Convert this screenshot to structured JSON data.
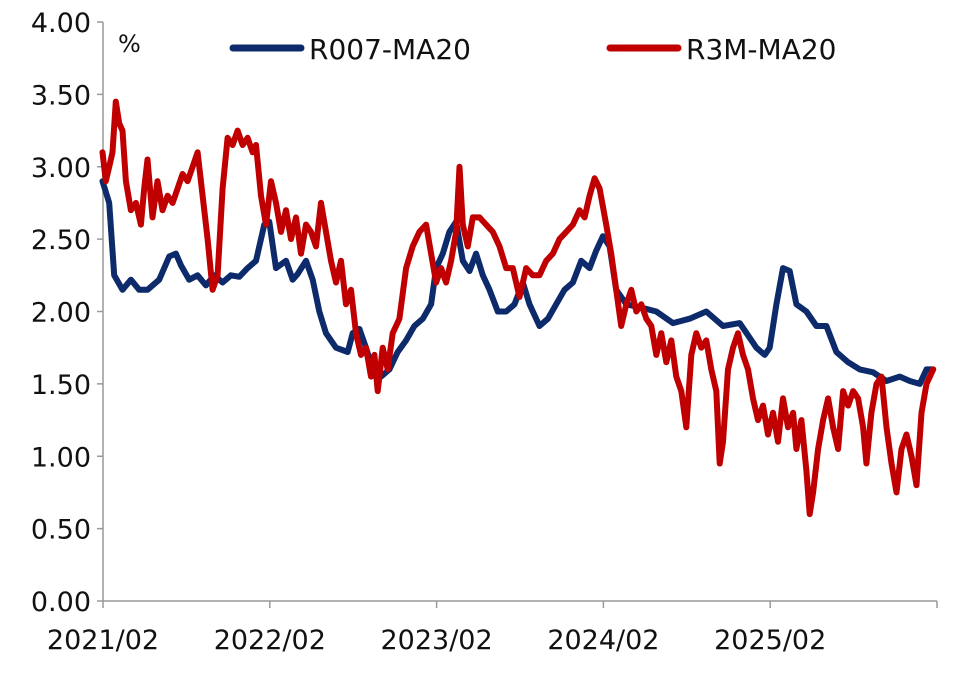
{
  "chart_data": {
    "type": "line",
    "title": "",
    "unit_label": "%",
    "xlabel": "",
    "ylabel": "%",
    "ylim": [
      0,
      4
    ],
    "y_ticks": [
      "0.00",
      "0.50",
      "1.00",
      "1.50",
      "2.00",
      "2.50",
      "3.00",
      "3.50",
      "4.00"
    ],
    "x_tick_labels": [
      "2021/02",
      "2022/02",
      "2023/02",
      "2024/02",
      "2025/02"
    ],
    "x_range_years": [
      2021.083,
      2026.083
    ],
    "legend_position": "top",
    "series": [
      {
        "name": "R007-MA20",
        "color": "#0d2a6b",
        "points": [
          [
            2021.08,
            2.9
          ],
          [
            2021.12,
            2.75
          ],
          [
            2021.15,
            2.25
          ],
          [
            2021.2,
            2.15
          ],
          [
            2021.25,
            2.22
          ],
          [
            2021.3,
            2.15
          ],
          [
            2021.35,
            2.15
          ],
          [
            2021.42,
            2.22
          ],
          [
            2021.48,
            2.38
          ],
          [
            2021.52,
            2.4
          ],
          [
            2021.55,
            2.32
          ],
          [
            2021.6,
            2.22
          ],
          [
            2021.65,
            2.25
          ],
          [
            2021.7,
            2.18
          ],
          [
            2021.75,
            2.25
          ],
          [
            2021.8,
            2.2
          ],
          [
            2021.85,
            2.25
          ],
          [
            2021.9,
            2.24
          ],
          [
            2021.95,
            2.3
          ],
          [
            2022.0,
            2.35
          ],
          [
            2022.05,
            2.6
          ],
          [
            2022.08,
            2.62
          ],
          [
            2022.12,
            2.3
          ],
          [
            2022.18,
            2.35
          ],
          [
            2022.22,
            2.22
          ],
          [
            2022.25,
            2.26
          ],
          [
            2022.3,
            2.35
          ],
          [
            2022.34,
            2.22
          ],
          [
            2022.38,
            2.0
          ],
          [
            2022.42,
            1.85
          ],
          [
            2022.48,
            1.75
          ],
          [
            2022.55,
            1.72
          ],
          [
            2022.58,
            1.85
          ],
          [
            2022.62,
            1.88
          ],
          [
            2022.66,
            1.75
          ],
          [
            2022.7,
            1.6
          ],
          [
            2022.75,
            1.55
          ],
          [
            2022.8,
            1.6
          ],
          [
            2022.85,
            1.72
          ],
          [
            2022.9,
            1.8
          ],
          [
            2022.95,
            1.9
          ],
          [
            2023.0,
            1.95
          ],
          [
            2023.05,
            2.05
          ],
          [
            2023.08,
            2.3
          ],
          [
            2023.12,
            2.4
          ],
          [
            2023.16,
            2.55
          ],
          [
            2023.2,
            2.62
          ],
          [
            2023.24,
            2.35
          ],
          [
            2023.28,
            2.28
          ],
          [
            2023.32,
            2.4
          ],
          [
            2023.36,
            2.25
          ],
          [
            2023.4,
            2.15
          ],
          [
            2023.45,
            2.0
          ],
          [
            2023.5,
            2.0
          ],
          [
            2023.55,
            2.05
          ],
          [
            2023.6,
            2.2
          ],
          [
            2023.64,
            2.05
          ],
          [
            2023.7,
            1.9
          ],
          [
            2023.75,
            1.95
          ],
          [
            2023.8,
            2.05
          ],
          [
            2023.85,
            2.15
          ],
          [
            2023.9,
            2.2
          ],
          [
            2023.95,
            2.35
          ],
          [
            2024.0,
            2.3
          ],
          [
            2024.04,
            2.42
          ],
          [
            2024.08,
            2.52
          ],
          [
            2024.12,
            2.45
          ],
          [
            2024.16,
            2.15
          ],
          [
            2024.22,
            2.05
          ],
          [
            2024.3,
            2.03
          ],
          [
            2024.4,
            2.0
          ],
          [
            2024.5,
            1.92
          ],
          [
            2024.6,
            1.95
          ],
          [
            2024.7,
            2.0
          ],
          [
            2024.8,
            1.9
          ],
          [
            2024.9,
            1.92
          ],
          [
            2025.0,
            1.75
          ],
          [
            2025.05,
            1.7
          ],
          [
            2025.08,
            1.75
          ],
          [
            2025.12,
            2.05
          ],
          [
            2025.16,
            2.3
          ],
          [
            2025.2,
            2.28
          ],
          [
            2025.24,
            2.05
          ],
          [
            2025.3,
            2.0
          ],
          [
            2025.36,
            1.9
          ],
          [
            2025.42,
            1.9
          ],
          [
            2025.48,
            1.72
          ],
          [
            2025.55,
            1.65
          ],
          [
            2025.62,
            1.6
          ],
          [
            2025.7,
            1.58
          ],
          [
            2025.78,
            1.52
          ],
          [
            2025.86,
            1.55
          ],
          [
            2025.92,
            1.52
          ],
          [
            2025.98,
            1.5
          ],
          [
            2026.02,
            1.6
          ],
          [
            2026.06,
            1.6
          ]
        ]
      },
      {
        "name": "R3M-MA20",
        "color": "#c00000",
        "points": [
          [
            2021.08,
            3.1
          ],
          [
            2021.1,
            2.9
          ],
          [
            2021.12,
            3.0
          ],
          [
            2021.14,
            3.1
          ],
          [
            2021.16,
            3.45
          ],
          [
            2021.18,
            3.3
          ],
          [
            2021.2,
            3.25
          ],
          [
            2021.22,
            2.9
          ],
          [
            2021.25,
            2.7
          ],
          [
            2021.28,
            2.75
          ],
          [
            2021.31,
            2.6
          ],
          [
            2021.33,
            2.85
          ],
          [
            2021.35,
            3.05
          ],
          [
            2021.38,
            2.65
          ],
          [
            2021.41,
            2.9
          ],
          [
            2021.44,
            2.7
          ],
          [
            2021.47,
            2.8
          ],
          [
            2021.5,
            2.75
          ],
          [
            2021.53,
            2.85
          ],
          [
            2021.56,
            2.95
          ],
          [
            2021.59,
            2.9
          ],
          [
            2021.62,
            3.0
          ],
          [
            2021.65,
            3.1
          ],
          [
            2021.68,
            2.8
          ],
          [
            2021.71,
            2.5
          ],
          [
            2021.74,
            2.15
          ],
          [
            2021.77,
            2.25
          ],
          [
            2021.8,
            2.85
          ],
          [
            2021.83,
            3.2
          ],
          [
            2021.86,
            3.15
          ],
          [
            2021.89,
            3.25
          ],
          [
            2021.92,
            3.15
          ],
          [
            2021.95,
            3.2
          ],
          [
            2021.98,
            3.1
          ],
          [
            2022.0,
            3.15
          ],
          [
            2022.03,
            2.8
          ],
          [
            2022.06,
            2.6
          ],
          [
            2022.09,
            2.9
          ],
          [
            2022.12,
            2.75
          ],
          [
            2022.15,
            2.55
          ],
          [
            2022.18,
            2.7
          ],
          [
            2022.21,
            2.5
          ],
          [
            2022.24,
            2.65
          ],
          [
            2022.27,
            2.4
          ],
          [
            2022.3,
            2.6
          ],
          [
            2022.33,
            2.55
          ],
          [
            2022.36,
            2.45
          ],
          [
            2022.39,
            2.75
          ],
          [
            2022.42,
            2.55
          ],
          [
            2022.45,
            2.35
          ],
          [
            2022.48,
            2.2
          ],
          [
            2022.51,
            2.35
          ],
          [
            2022.54,
            2.05
          ],
          [
            2022.57,
            2.15
          ],
          [
            2022.6,
            1.85
          ],
          [
            2022.63,
            1.7
          ],
          [
            2022.66,
            1.75
          ],
          [
            2022.69,
            1.55
          ],
          [
            2022.71,
            1.7
          ],
          [
            2022.73,
            1.45
          ],
          [
            2022.76,
            1.75
          ],
          [
            2022.79,
            1.6
          ],
          [
            2022.82,
            1.85
          ],
          [
            2022.86,
            1.95
          ],
          [
            2022.9,
            2.3
          ],
          [
            2022.94,
            2.45
          ],
          [
            2022.98,
            2.55
          ],
          [
            2023.02,
            2.6
          ],
          [
            2023.05,
            2.4
          ],
          [
            2023.08,
            2.2
          ],
          [
            2023.11,
            2.3
          ],
          [
            2023.14,
            2.2
          ],
          [
            2023.17,
            2.35
          ],
          [
            2023.2,
            2.55
          ],
          [
            2023.22,
            3.0
          ],
          [
            2023.24,
            2.6
          ],
          [
            2023.27,
            2.45
          ],
          [
            2023.3,
            2.65
          ],
          [
            2023.34,
            2.65
          ],
          [
            2023.38,
            2.6
          ],
          [
            2023.42,
            2.55
          ],
          [
            2023.46,
            2.45
          ],
          [
            2023.5,
            2.3
          ],
          [
            2023.54,
            2.3
          ],
          [
            2023.58,
            2.1
          ],
          [
            2023.62,
            2.3
          ],
          [
            2023.66,
            2.25
          ],
          [
            2023.7,
            2.25
          ],
          [
            2023.74,
            2.35
          ],
          [
            2023.78,
            2.4
          ],
          [
            2023.82,
            2.5
          ],
          [
            2023.86,
            2.55
          ],
          [
            2023.9,
            2.6
          ],
          [
            2023.94,
            2.7
          ],
          [
            2023.97,
            2.65
          ],
          [
            2024.0,
            2.8
          ],
          [
            2024.03,
            2.92
          ],
          [
            2024.06,
            2.85
          ],
          [
            2024.1,
            2.6
          ],
          [
            2024.13,
            2.4
          ],
          [
            2024.16,
            2.15
          ],
          [
            2024.19,
            1.9
          ],
          [
            2024.22,
            2.05
          ],
          [
            2024.25,
            2.15
          ],
          [
            2024.28,
            2.0
          ],
          [
            2024.31,
            2.05
          ],
          [
            2024.34,
            1.95
          ],
          [
            2024.37,
            1.9
          ],
          [
            2024.4,
            1.7
          ],
          [
            2024.43,
            1.85
          ],
          [
            2024.46,
            1.65
          ],
          [
            2024.49,
            1.8
          ],
          [
            2024.52,
            1.55
          ],
          [
            2024.55,
            1.45
          ],
          [
            2024.58,
            1.2
          ],
          [
            2024.61,
            1.7
          ],
          [
            2024.64,
            1.85
          ],
          [
            2024.67,
            1.75
          ],
          [
            2024.7,
            1.8
          ],
          [
            2024.73,
            1.6
          ],
          [
            2024.76,
            1.45
          ],
          [
            2024.78,
            0.95
          ],
          [
            2024.8,
            1.1
          ],
          [
            2024.83,
            1.6
          ],
          [
            2024.86,
            1.75
          ],
          [
            2024.89,
            1.85
          ],
          [
            2024.92,
            1.7
          ],
          [
            2024.95,
            1.6
          ],
          [
            2024.98,
            1.4
          ],
          [
            2025.01,
            1.25
          ],
          [
            2025.04,
            1.35
          ],
          [
            2025.07,
            1.15
          ],
          [
            2025.1,
            1.3
          ],
          [
            2025.13,
            1.1
          ],
          [
            2025.16,
            1.4
          ],
          [
            2025.19,
            1.2
          ],
          [
            2025.22,
            1.3
          ],
          [
            2025.24,
            1.05
          ],
          [
            2025.27,
            1.25
          ],
          [
            2025.3,
            0.9
          ],
          [
            2025.32,
            0.6
          ],
          [
            2025.34,
            0.75
          ],
          [
            2025.37,
            1.05
          ],
          [
            2025.4,
            1.25
          ],
          [
            2025.43,
            1.4
          ],
          [
            2025.46,
            1.2
          ],
          [
            2025.49,
            1.05
          ],
          [
            2025.52,
            1.45
          ],
          [
            2025.55,
            1.35
          ],
          [
            2025.58,
            1.45
          ],
          [
            2025.61,
            1.4
          ],
          [
            2025.64,
            1.2
          ],
          [
            2025.66,
            0.95
          ],
          [
            2025.69,
            1.3
          ],
          [
            2025.72,
            1.5
          ],
          [
            2025.75,
            1.55
          ],
          [
            2025.78,
            1.2
          ],
          [
            2025.81,
            0.95
          ],
          [
            2025.84,
            0.75
          ],
          [
            2025.87,
            1.05
          ],
          [
            2025.9,
            1.15
          ],
          [
            2025.93,
            1.0
          ],
          [
            2025.96,
            0.8
          ],
          [
            2025.99,
            1.3
          ],
          [
            2026.02,
            1.5
          ],
          [
            2026.06,
            1.6
          ]
        ]
      }
    ]
  }
}
